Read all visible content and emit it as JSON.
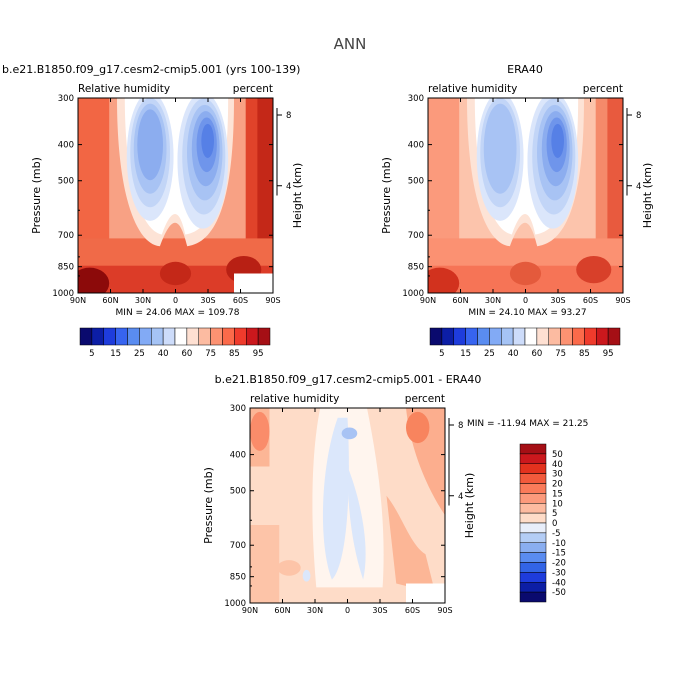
{
  "page": {
    "title": "ANN",
    "colors": {
      "background": "#ffffff"
    }
  },
  "chart_data": [
    {
      "type": "heatmap",
      "subtype": "filled-contour",
      "title": "b.e21.B1850.f09_g17.cesm2-cmip5.001 (yrs 100-139)",
      "left_label": "Relative humidity",
      "right_label": "percent",
      "xlabel": "",
      "ylabel": "Pressure (mb)",
      "y2label": "Height (km)",
      "xticks": [
        "90N",
        "60N",
        "30N",
        "0",
        "30S",
        "60S",
        "90S"
      ],
      "x_values": [
        90,
        60,
        30,
        0,
        -30,
        -60,
        -90
      ],
      "yticks": [
        "300",
        "400",
        "500",
        "700",
        "850",
        "1000"
      ],
      "y_values": [
        300,
        400,
        500,
        700,
        850,
        1000
      ],
      "y2ticks": [
        "8",
        "4"
      ],
      "y2_values": [
        8,
        4
      ],
      "ylim": [
        1000,
        300
      ],
      "yscale": "log",
      "stats": "MIN =  24.06   MAX = 109.78",
      "min": 24.06,
      "max": 109.78,
      "colorbar": {
        "orientation": "horizontal",
        "levels": [
          5,
          10,
          15,
          20,
          25,
          30,
          40,
          50,
          60,
          70,
          75,
          80,
          85,
          90,
          95
        ],
        "labels": [
          "5",
          "15",
          "25",
          "40",
          "60",
          "75",
          "85",
          "95"
        ],
        "colors": [
          "#0a0a6e",
          "#0c1ea5",
          "#1e3cdc",
          "#3764f0",
          "#5a8cf0",
          "#82aaf5",
          "#a5c3f5",
          "#cddcfa",
          "#ffffff",
          "#fee0d2",
          "#fcbba1",
          "#fc9272",
          "#fb6a4a",
          "#ef3b2c",
          "#cb181d",
          "#a50f15"
        ]
      }
    },
    {
      "type": "heatmap",
      "subtype": "filled-contour",
      "title": "ERA40",
      "left_label": "relative humidity",
      "right_label": "percent",
      "xlabel": "",
      "ylabel": "Pressure (mb)",
      "y2label": "Height (km)",
      "xticks": [
        "90N",
        "60N",
        "30N",
        "0",
        "30S",
        "60S",
        "90S"
      ],
      "x_values": [
        90,
        60,
        30,
        0,
        -30,
        -60,
        -90
      ],
      "yticks": [
        "300",
        "400",
        "500",
        "700",
        "850",
        "1000"
      ],
      "y_values": [
        300,
        400,
        500,
        700,
        850,
        1000
      ],
      "y2ticks": [
        "8",
        "4"
      ],
      "y2_values": [
        8,
        4
      ],
      "ylim": [
        1000,
        300
      ],
      "yscale": "log",
      "stats": "MIN =  24.10   MAX =  93.27",
      "min": 24.1,
      "max": 93.27,
      "colorbar": {
        "orientation": "horizontal",
        "levels": [
          5,
          10,
          15,
          20,
          25,
          30,
          40,
          50,
          60,
          70,
          75,
          80,
          85,
          90,
          95
        ],
        "labels": [
          "5",
          "15",
          "25",
          "40",
          "60",
          "75",
          "85",
          "95"
        ],
        "colors": [
          "#0a0a6e",
          "#0c1ea5",
          "#1e3cdc",
          "#3764f0",
          "#5a8cf0",
          "#82aaf5",
          "#a5c3f5",
          "#cddcfa",
          "#ffffff",
          "#fee0d2",
          "#fcbba1",
          "#fc9272",
          "#fb6a4a",
          "#ef3b2c",
          "#cb181d",
          "#a50f15"
        ]
      }
    },
    {
      "type": "heatmap",
      "subtype": "filled-contour-difference",
      "title": "b.e21.B1850.f09_g17.cesm2-cmip5.001 - ERA40",
      "left_label": "relative humidity",
      "right_label": "percent",
      "xlabel": "",
      "ylabel": "Pressure (mb)",
      "y2label": "Height (km)",
      "xticks": [
        "90N",
        "60N",
        "30N",
        "0",
        "30S",
        "60S",
        "90S"
      ],
      "x_values": [
        90,
        60,
        30,
        0,
        -30,
        -60,
        -90
      ],
      "yticks": [
        "300",
        "400",
        "500",
        "700",
        "850",
        "1000"
      ],
      "y_values": [
        300,
        400,
        500,
        700,
        850,
        1000
      ],
      "y2ticks": [
        "8",
        "4"
      ],
      "y2_values": [
        8,
        4
      ],
      "ylim": [
        1000,
        300
      ],
      "yscale": "log",
      "stats": "MIN = -11.94   MAX =  21.25",
      "min": -11.94,
      "max": 21.25,
      "colorbar": {
        "orientation": "vertical",
        "labels": [
          "50",
          "40",
          "30",
          "20",
          "15",
          "10",
          "5",
          "0",
          "-5",
          "-10",
          "-15",
          "-20",
          "-30",
          "-40",
          "-50"
        ],
        "colors": [
          "#a50f15",
          "#cb181d",
          "#e3321e",
          "#f25a3c",
          "#fa7b5a",
          "#fc9a7c",
          "#fdbba0",
          "#fedcc8",
          "#e8eefa",
          "#b4cdf5",
          "#8aaef0",
          "#5a8cf0",
          "#3264e6",
          "#1e3cdc",
          "#0c1ea5",
          "#0a0a6e"
        ]
      }
    }
  ]
}
